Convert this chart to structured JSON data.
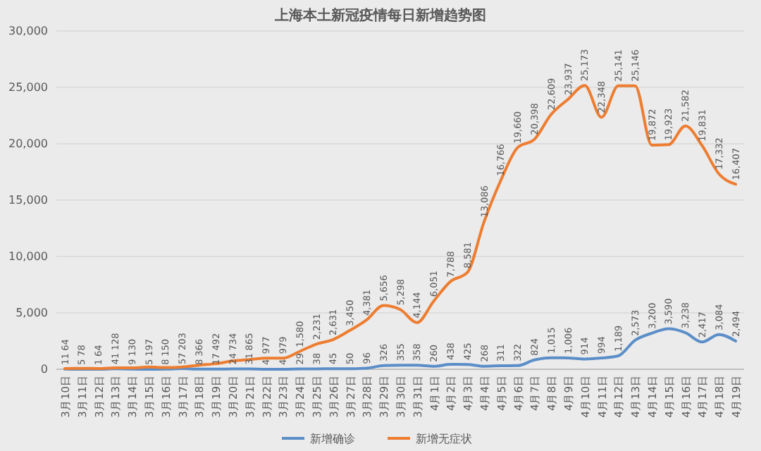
{
  "chart_data": {
    "type": "line",
    "title": "上海本土新冠疫情每日新增趋势图",
    "categories": [
      "3月10日",
      "3月11日",
      "3月12日",
      "3月13日",
      "3月14日",
      "3月15日",
      "3月16日",
      "3月17日",
      "3月18日",
      "3月19日",
      "3月20日",
      "3月21日",
      "3月22日",
      "3月23日",
      "3月24日",
      "3月25日",
      "3月26日",
      "3月27日",
      "3月28日",
      "3月29日",
      "3月30日",
      "3月31日",
      "4月1日",
      "4月2日",
      "4月3日",
      "4月4日",
      "4月5日",
      "4月6日",
      "4月7日",
      "4月8日",
      "4月9日",
      "4月10日",
      "4月11日",
      "4月12日",
      "4月13日",
      "4月14日",
      "4月15日",
      "4月16日",
      "4月17日",
      "4月18日",
      "4月19日"
    ],
    "series": [
      {
        "name": "新增确诊",
        "color": "#5b8ec8",
        "values": [
          11,
          5,
          1,
          41,
          9,
          5,
          8,
          57,
          8,
          17,
          24,
          31,
          4,
          4,
          29,
          38,
          45,
          50,
          96,
          326,
          355,
          358,
          260,
          438,
          425,
          268,
          311,
          322,
          824,
          1015,
          1006,
          914,
          994,
          1189,
          2573,
          3200,
          3590,
          3238,
          2417,
          3084,
          2494
        ],
        "value_labels": [
          "11",
          "5",
          "1",
          "41",
          "9",
          "5",
          "8",
          "57",
          "8",
          "17",
          "24",
          "31",
          "4",
          "4",
          "29",
          "38",
          "45",
          "50",
          "96",
          "326",
          "355",
          "358",
          "260",
          "438",
          "425",
          "268",
          "311",
          "322",
          "824",
          "1,015",
          "1,006",
          "914",
          "994",
          "1,189",
          "2,573",
          "3,200",
          "3,590",
          "3,238",
          "2,417",
          "3,084",
          "2,494"
        ]
      },
      {
        "name": "新增无症状",
        "color": "#ed7d31",
        "values": [
          64,
          78,
          64,
          128,
          130,
          197,
          150,
          203,
          366,
          492,
          734,
          865,
          977,
          979,
          1580,
          2231,
          2631,
          3450,
          4381,
          5656,
          5298,
          4144,
          6051,
          7788,
          8581,
          13086,
          16766,
          19660,
          20398,
          22609,
          23937,
          25173,
          22348,
          25141,
          25146,
          19872,
          19923,
          21582,
          19831,
          17332,
          16407
        ],
        "value_labels": [
          "64",
          "78",
          "64",
          "128",
          "130",
          "197",
          "150",
          "203",
          "366",
          "492",
          "734",
          "865",
          "977",
          "979",
          "1,580",
          "2,231",
          "2,631",
          "3,450",
          "4,381",
          "5,656",
          "5,298",
          "4,144",
          "6,051",
          "7,788",
          "8,581",
          "13,086",
          "16,766",
          "19,660",
          "20,398",
          "22,609",
          "23,937",
          "25,173",
          "22,348",
          "25,141",
          "25,146",
          "19,872",
          "19,923",
          "21,582",
          "19,831",
          "17,332",
          "16,407"
        ]
      }
    ],
    "ylim": [
      0,
      30000
    ],
    "yticks": [
      {
        "value": 0,
        "label": "0"
      },
      {
        "value": 5000,
        "label": "5,000"
      },
      {
        "value": 10000,
        "label": "10,000"
      },
      {
        "value": 15000,
        "label": "15,000"
      },
      {
        "value": 20000,
        "label": "20,000"
      },
      {
        "value": 25000,
        "label": "25,000"
      },
      {
        "value": 30000,
        "label": "30,000"
      }
    ],
    "grid": "y",
    "legend": "bottom",
    "marker": "none",
    "line_style": "solid"
  }
}
